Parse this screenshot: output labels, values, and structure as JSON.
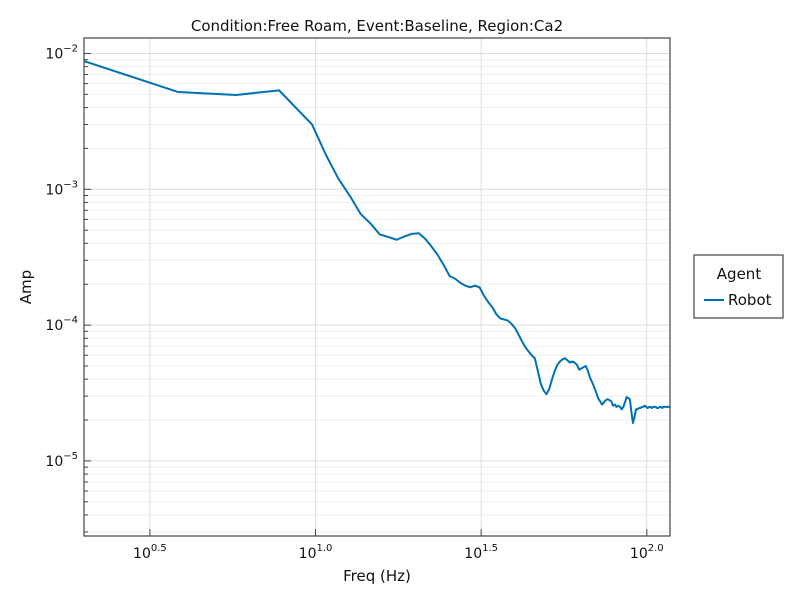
{
  "chart_data": {
    "type": "line",
    "title": "Condition:Free Roam, Event:Baseline, Region:Ca2",
    "xlabel": "Freq (Hz)",
    "ylabel": "Amp",
    "xscale": "log10",
    "yscale": "log10",
    "xlim": [
      2.0,
      117.5
    ],
    "ylim": [
      2.8e-06,
      0.013
    ],
    "x_ticks": [
      {
        "value": 3.1623,
        "base": "10",
        "exp": "0.5"
      },
      {
        "value": 10,
        "base": "10",
        "exp": "1.0"
      },
      {
        "value": 31.623,
        "base": "10",
        "exp": "1.5"
      },
      {
        "value": 100,
        "base": "10",
        "exp": "2.0"
      }
    ],
    "y_ticks": [
      {
        "value": 1e-05,
        "base": "10",
        "exp": "−5"
      },
      {
        "value": 0.0001,
        "base": "10",
        "exp": "−4"
      },
      {
        "value": 0.001,
        "base": "10",
        "exp": "−3"
      },
      {
        "value": 0.01,
        "base": "10",
        "exp": "−2"
      }
    ],
    "grid": true,
    "legend": {
      "title": "Agent",
      "position": "right"
    },
    "series": [
      {
        "name": "Robot",
        "color": "#0072b2",
        "x": [
          2.0,
          3.85,
          5.76,
          7.76,
          9.76,
          10.74,
          11.72,
          12.71,
          13.67,
          14.65,
          15.63,
          16.61,
          17.58,
          18.56,
          19.53,
          20.51,
          21.48,
          22.46,
          23.44,
          24.41,
          25.39,
          26.37,
          27.34,
          28.32,
          29.3,
          30.27,
          31.25,
          32.23,
          33.2,
          34.18,
          35.16,
          36.13,
          37.11,
          38.09,
          39.06,
          40.04,
          41.02,
          41.99,
          42.97,
          43.95,
          44.92,
          45.9,
          46.88,
          47.85,
          48.83,
          49.8,
          50.78,
          51.76,
          52.73,
          53.71,
          54.69,
          55.66,
          56.64,
          57.62,
          58.59,
          59.57,
          60.55,
          61.52,
          62.5,
          63.48,
          64.45,
          65.43,
          66.41,
          67.38,
          68.36,
          69.34,
          70.31,
          71.29,
          72.27,
          73.24,
          74.22,
          75.2,
          76.17,
          77.15,
          78.13,
          79.1,
          80.08,
          81.05,
          82.03,
          83.01,
          83.98,
          84.96,
          85.94,
          86.91,
          87.89,
          88.87,
          89.84,
          90.82,
          91.8,
          92.77,
          93.75,
          94.73,
          95.7,
          96.68,
          97.66,
          98.63,
          99.61,
          100.59,
          101.56,
          102.54,
          103.52,
          104.49,
          105.47,
          106.45,
          107.42,
          108.4,
          109.38,
          110.35,
          111.33,
          112.3,
          113.28,
          114.26,
          115.23,
          116.21,
          117.19
        ],
        "values": [
          0.0088,
          0.0052,
          0.00495,
          0.00535,
          0.003,
          0.0018,
          0.0012,
          0.00089,
          0.00066,
          0.00056,
          0.000465,
          0.000445,
          0.000425,
          0.00045,
          0.00047,
          0.000475,
          0.00043,
          0.000375,
          0.000325,
          0.000275,
          0.00023,
          0.00022,
          0.000205,
          0.000195,
          0.00019,
          0.000195,
          0.00019,
          0.000165,
          0.000148,
          0.000135,
          0.00012,
          0.000112,
          0.00011,
          0.000108,
          0.000102,
          9.5e-05,
          8.5e-05,
          7.6e-05,
          6.9e-05,
          6.4e-05,
          6e-05,
          5.7e-05,
          4.6e-05,
          3.7e-05,
          3.3e-05,
          3.1e-05,
          3.4e-05,
          4e-05,
          4.6e-05,
          5.1e-05,
          5.4e-05,
          5.6e-05,
          5.7e-05,
          5.5e-05,
          5.3e-05,
          5.4e-05,
          5.3e-05,
          5.1e-05,
          4.7e-05,
          4.8e-05,
          4.9e-05,
          5e-05,
          4.6e-05,
          4.1e-05,
          3.8e-05,
          3.5e-05,
          3.2e-05,
          2.9e-05,
          2.75e-05,
          2.6e-05,
          2.7e-05,
          2.8e-05,
          2.85e-05,
          2.8e-05,
          2.75e-05,
          2.55e-05,
          2.6e-05,
          2.5e-05,
          2.55e-05,
          2.5e-05,
          2.4e-05,
          2.5e-05,
          2.7e-05,
          2.95e-05,
          2.9e-05,
          2.85e-05,
          2.3e-05,
          1.9e-05,
          2.1e-05,
          2.4e-05,
          2.4e-05,
          2.45e-05,
          2.45e-05,
          2.5e-05,
          2.5e-05,
          2.55e-05,
          2.5e-05,
          2.45e-05,
          2.5e-05,
          2.5e-05,
          2.45e-05,
          2.5e-05,
          2.5e-05,
          2.5e-05,
          2.45e-05,
          2.45e-05,
          2.5e-05,
          2.5e-05,
          2.45e-05,
          2.5e-05,
          2.5e-05,
          2.5e-05,
          2.5e-05,
          2.5e-05,
          2.5e-05
        ]
      }
    ]
  }
}
